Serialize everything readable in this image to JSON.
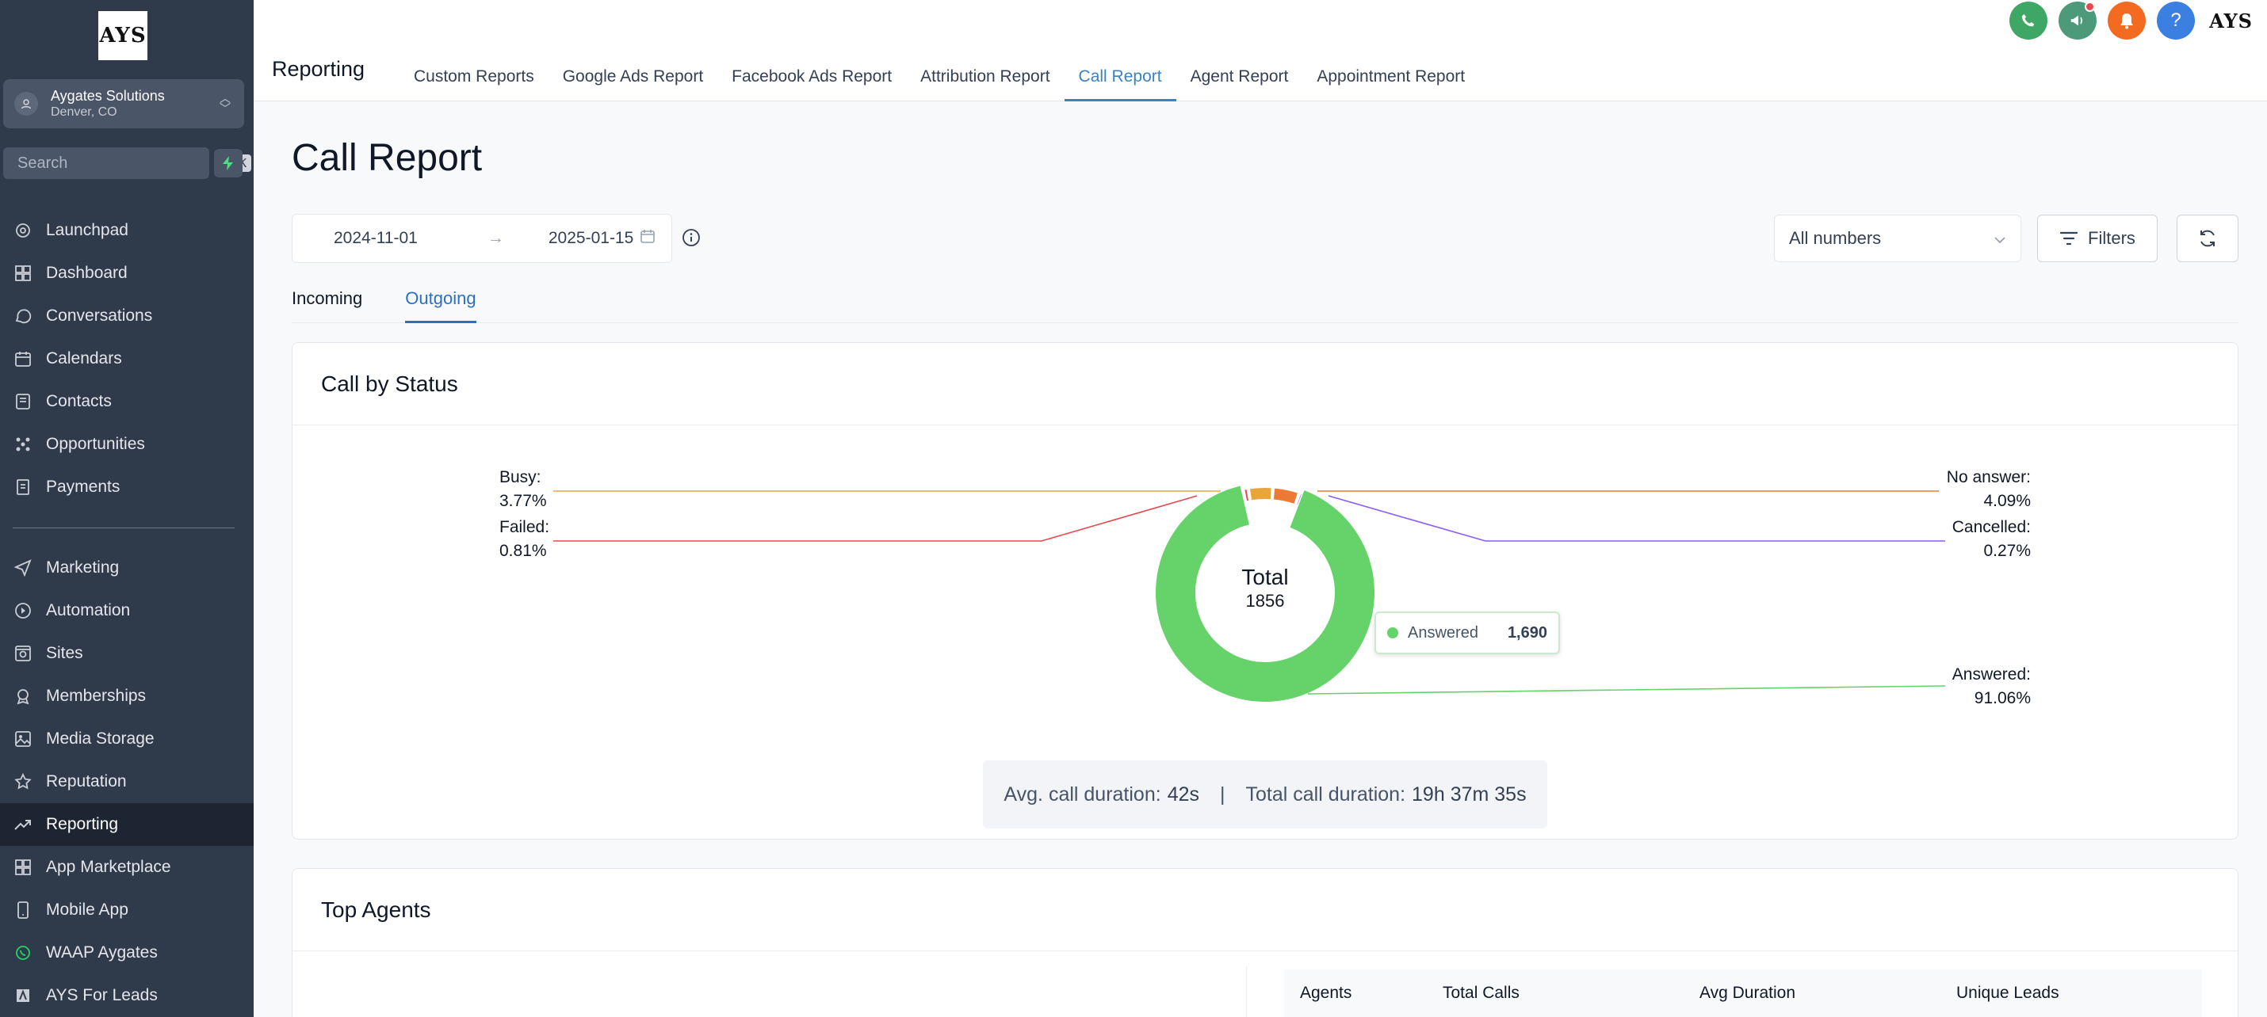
{
  "sidebar": {
    "logo": "AYS",
    "location": {
      "name": "Aygates Solutions",
      "city": "Denver, CO"
    },
    "search": {
      "placeholder": "Search",
      "shortcut": "⌘K"
    },
    "items_top": [
      {
        "label": "Launchpad",
        "icon": "launchpad-icon"
      },
      {
        "label": "Dashboard",
        "icon": "dashboard-icon"
      },
      {
        "label": "Conversations",
        "icon": "chat-icon"
      },
      {
        "label": "Calendars",
        "icon": "calendar-icon"
      },
      {
        "label": "Contacts",
        "icon": "contacts-icon"
      },
      {
        "label": "Opportunities",
        "icon": "opportunities-icon"
      },
      {
        "label": "Payments",
        "icon": "payments-icon"
      }
    ],
    "items_bottom": [
      {
        "label": "Marketing",
        "icon": "send-icon"
      },
      {
        "label": "Automation",
        "icon": "automation-icon"
      },
      {
        "label": "Sites",
        "icon": "sites-icon"
      },
      {
        "label": "Memberships",
        "icon": "membership-icon"
      },
      {
        "label": "Media Storage",
        "icon": "image-icon"
      },
      {
        "label": "Reputation",
        "icon": "star-icon"
      },
      {
        "label": "Reporting",
        "icon": "trending-icon",
        "active": true
      },
      {
        "label": "App Marketplace",
        "icon": "grid-icon"
      },
      {
        "label": "Mobile App",
        "icon": "phone-icon"
      },
      {
        "label": "WAAP Aygates",
        "icon": "whatsapp-icon"
      },
      {
        "label": "AYS For Leads",
        "icon": "ays-icon"
      }
    ]
  },
  "header": {
    "title": "Reporting",
    "tabs": [
      {
        "label": "Custom Reports"
      },
      {
        "label": "Google Ads Report"
      },
      {
        "label": "Facebook Ads Report"
      },
      {
        "label": "Attribution Report"
      },
      {
        "label": "Call Report",
        "active": true
      },
      {
        "label": "Agent Report"
      },
      {
        "label": "Appointment Report"
      }
    ],
    "brand": "AYS",
    "colors": {
      "phone": "#3fa765",
      "megaphone": "#4c9a7a",
      "bell": "#f26b21",
      "help": "#3b7fe0"
    }
  },
  "main": {
    "title": "Call Report",
    "date_start": "2024-11-01",
    "date_end": "2025-01-15",
    "number_select": "All numbers",
    "filters_label": "Filters",
    "tabs": [
      {
        "label": "Incoming"
      },
      {
        "label": "Outgoing",
        "active": true
      }
    ]
  },
  "status_card": {
    "title": "Call by Status",
    "center_label": "Total",
    "center_value": "1856",
    "labels": {
      "busy": {
        "name": "Busy:",
        "pct": "3.77%"
      },
      "failed": {
        "name": "Failed:",
        "pct": "0.81%"
      },
      "no_answer": {
        "name": "No answer:",
        "pct": "4.09%"
      },
      "cancelled": {
        "name": "Cancelled:",
        "pct": "0.27%"
      },
      "answered": {
        "name": "Answered:",
        "pct": "91.06%"
      }
    },
    "tooltip": {
      "label": "Answered",
      "value": "1,690"
    },
    "avg_label": "Avg. call duration:",
    "avg_value": "42s",
    "total_label": "Total call duration:",
    "total_value": "19h 37m 35s"
  },
  "chart_data": {
    "type": "pie",
    "categories": [
      "Answered",
      "Busy",
      "No answer",
      "Failed",
      "Cancelled"
    ],
    "values": [
      91.06,
      3.77,
      4.09,
      0.81,
      0.27
    ],
    "colors": [
      "#66d26a",
      "#e9a53b",
      "#ec7a34",
      "#e5484d",
      "#8b5cf6"
    ],
    "total": 1856
  },
  "agents_card": {
    "title": "Top Agents",
    "columns": [
      "Agents",
      "Total Calls",
      "Avg Duration",
      "Unique Leads"
    ]
  }
}
